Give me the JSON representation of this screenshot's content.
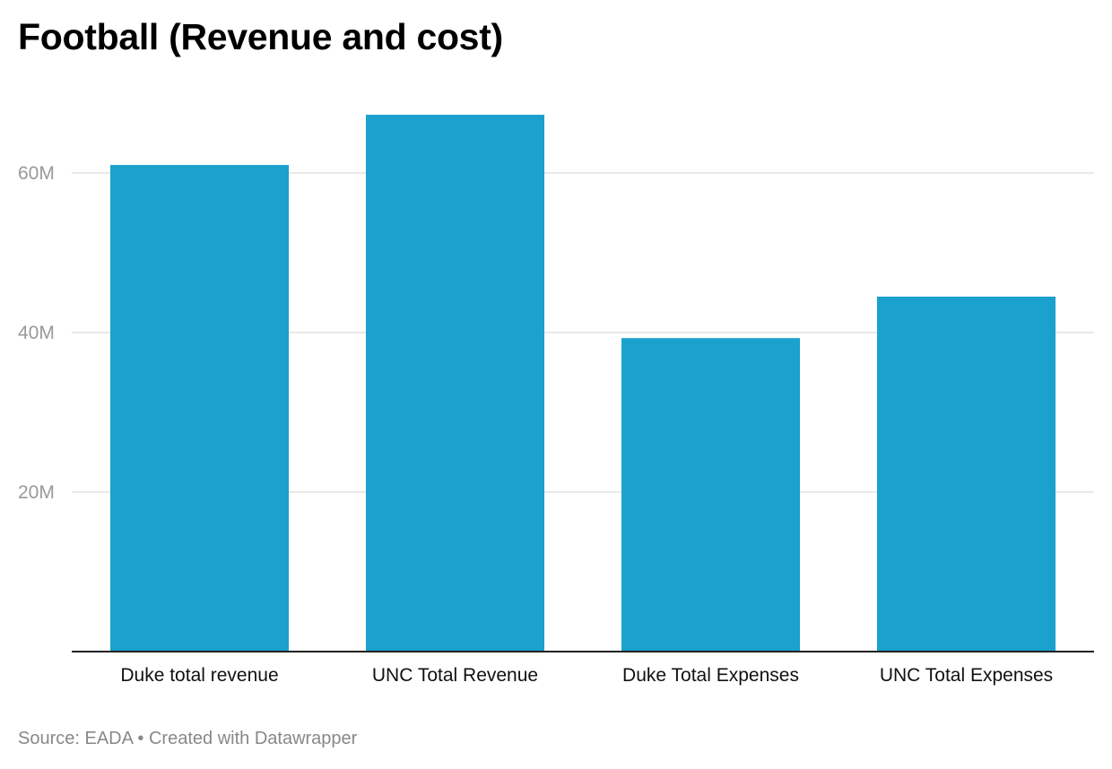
{
  "title": "Football (Revenue and cost)",
  "footer": {
    "source": "Source: EADA",
    "separator": "•",
    "credit": "Created with Datawrapper"
  },
  "colors": {
    "bar": "#1aa1cd",
    "grid": "#e2e2e2",
    "axis": "#222222",
    "tick_label": "#999999",
    "category_label": "#111111"
  },
  "chart_data": {
    "type": "bar",
    "title": "Football (Revenue and cost)",
    "categories": [
      "Duke total revenue",
      "UNC Total Revenue",
      "Duke Total Expenses",
      "UNC Total Expenses"
    ],
    "values": [
      61000000,
      67300000,
      39300000,
      44500000
    ],
    "ylim": [
      0,
      70000000
    ],
    "yticks": [
      {
        "value": 20000000,
        "label": "20M"
      },
      {
        "value": 40000000,
        "label": "40M"
      },
      {
        "value": 60000000,
        "label": "60M"
      }
    ],
    "xlabel": "",
    "ylabel": "",
    "grid": true,
    "legend": "none"
  }
}
